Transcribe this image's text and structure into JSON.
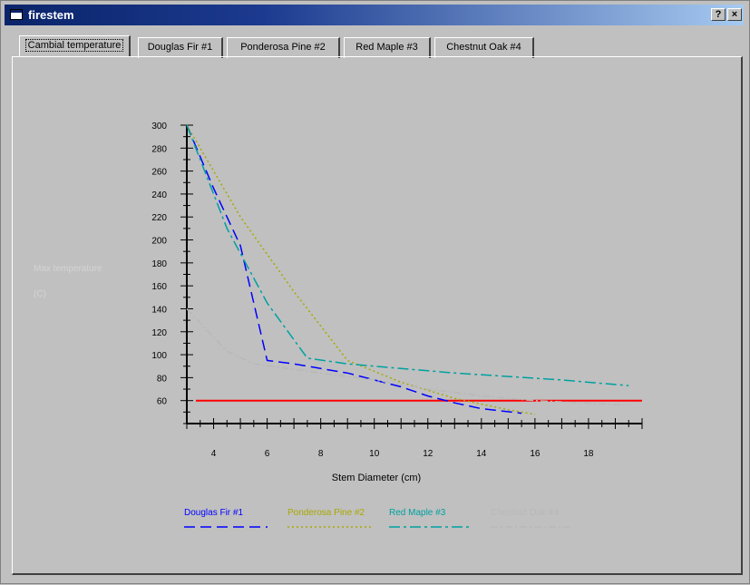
{
  "window": {
    "title": "firestem",
    "help_button": "?",
    "close_button": "×"
  },
  "tabs": [
    {
      "label": "Cambial temperature",
      "active": true
    },
    {
      "label": "Douglas Fir #1"
    },
    {
      "label": "Ponderosa Pine #2"
    },
    {
      "label": "Red Maple #3"
    },
    {
      "label": "Chestnut Oak #4"
    }
  ],
  "chart_data": {
    "type": "line",
    "xlabel": "Stem Diameter (cm)",
    "ylabel": "Max temperature",
    "ylabel_unit": "(C)",
    "xlim": [
      3,
      20
    ],
    "ylim": [
      40,
      300
    ],
    "x_ticks": [
      4,
      6,
      8,
      10,
      12,
      14,
      16,
      18
    ],
    "y_ticks": [
      60,
      80,
      100,
      120,
      140,
      160,
      180,
      200,
      220,
      240,
      260,
      280,
      300
    ],
    "grid": false,
    "legend_position": "bottom",
    "threshold": {
      "value": 60,
      "color": "#ff0000"
    },
    "series": [
      {
        "name": "Douglas Fir #1",
        "color": "#0000ff",
        "dash": "12,6",
        "points": [
          [
            3,
            300
          ],
          [
            4,
            245
          ],
          [
            5,
            195
          ],
          [
            6,
            95
          ],
          [
            7,
            92
          ],
          [
            8,
            88
          ],
          [
            9,
            84
          ],
          [
            10,
            78
          ],
          [
            11,
            72
          ],
          [
            12,
            64
          ],
          [
            13,
            58
          ],
          [
            14,
            53
          ],
          [
            15.5,
            49
          ]
        ]
      },
      {
        "name": "Ponderosa Pine #2",
        "color": "#a8a800",
        "dash": "2,3",
        "points": [
          [
            3,
            300
          ],
          [
            5,
            220
          ],
          [
            7,
            155
          ],
          [
            9,
            95
          ],
          [
            11,
            76
          ],
          [
            13,
            62
          ],
          [
            15,
            52
          ],
          [
            16,
            48
          ]
        ]
      },
      {
        "name": "Red Maple #3",
        "color": "#00a0a0",
        "dash": "12,4,3,4",
        "points": [
          [
            3,
            300
          ],
          [
            4.5,
            210
          ],
          [
            6,
            145
          ],
          [
            7.5,
            97
          ],
          [
            9,
            92
          ],
          [
            11,
            88
          ],
          [
            13,
            84
          ],
          [
            15,
            81
          ],
          [
            17,
            78
          ],
          [
            19.5,
            73
          ]
        ]
      },
      {
        "name": "Chestnut Oak #4",
        "color": "#b8b8b8",
        "dash": "8,3,2,3",
        "points": [
          [
            3,
            140
          ],
          [
            4.5,
            103
          ],
          [
            5.5,
            92
          ],
          [
            8,
            84
          ],
          [
            10,
            78
          ],
          [
            12,
            70
          ],
          [
            14,
            64
          ],
          [
            16,
            60
          ],
          [
            19.5,
            56
          ]
        ]
      }
    ]
  }
}
